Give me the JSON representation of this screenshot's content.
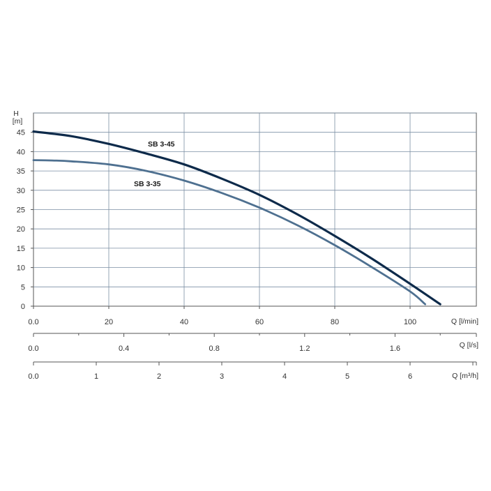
{
  "chart_data": {
    "type": "line",
    "y_axis": {
      "label_top": "H",
      "label_unit": "[m]",
      "ticks": [
        0,
        5,
        10,
        15,
        20,
        25,
        30,
        35,
        40,
        45
      ],
      "range": [
        0,
        50
      ]
    },
    "x_axes": [
      {
        "id": "lmin",
        "unit_label": "Q [l/min]",
        "ticks": [
          "0.0",
          "20",
          "40",
          "60",
          "80",
          "100"
        ],
        "tick_values": [
          0,
          20,
          40,
          60,
          80,
          100
        ],
        "range": [
          0,
          118
        ]
      },
      {
        "id": "ls",
        "unit_label": "Q [l/s]",
        "ticks": [
          "0.0",
          "0.4",
          "0.8",
          "1.2",
          "1.6"
        ],
        "tick_values": [
          0,
          0.4,
          0.8,
          1.2,
          1.6
        ],
        "minor_tick_values": [
          0.2,
          0.6,
          1.0,
          1.4,
          1.8
        ]
      },
      {
        "id": "m3h",
        "unit_label": "Q [m³/h]",
        "ticks": [
          "0.0",
          "1",
          "2",
          "3",
          "4",
          "5",
          "6"
        ],
        "tick_values": [
          0,
          1,
          2,
          3,
          4,
          5,
          6
        ],
        "minor_tick_values": [
          7
        ]
      }
    ],
    "grid": true,
    "series": [
      {
        "name": "SB 3-45",
        "color": "#0d2a4a",
        "x": [
          0,
          10,
          20,
          30,
          40,
          50,
          60,
          70,
          80,
          90,
          100,
          108
        ],
        "y": [
          45.2,
          44,
          42,
          39.5,
          36.7,
          33,
          28.8,
          23.8,
          18.2,
          12.2,
          5.8,
          0.5
        ]
      },
      {
        "name": "SB 3-35",
        "color": "#4e7090",
        "x": [
          0,
          5,
          10,
          20,
          30,
          40,
          50,
          60,
          70,
          80,
          90,
          100,
          104
        ],
        "y": [
          37.8,
          37.7,
          37.5,
          36.7,
          35,
          32.5,
          29.3,
          25.5,
          21,
          15.8,
          10,
          3.8,
          0.5
        ]
      }
    ]
  }
}
